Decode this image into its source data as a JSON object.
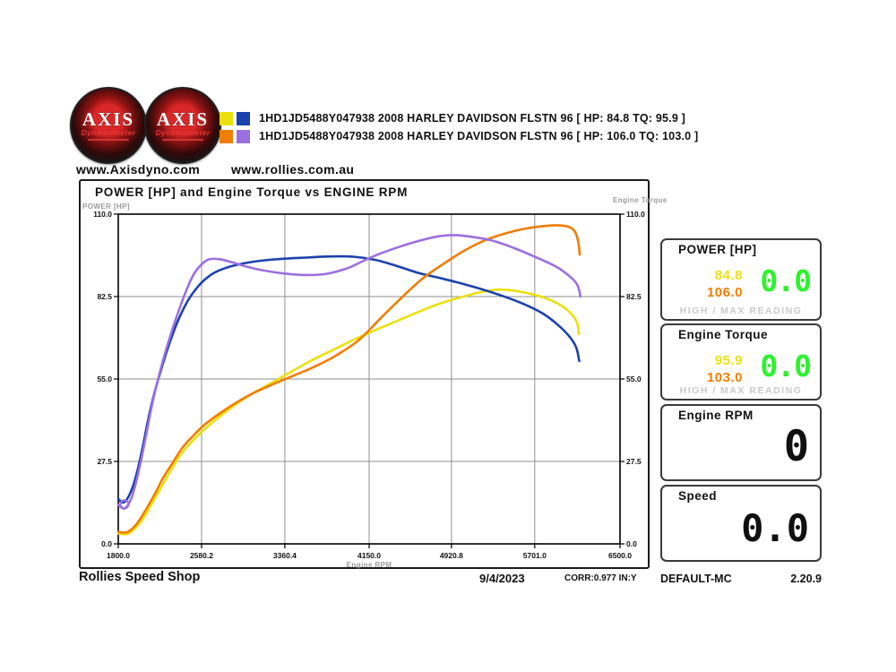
{
  "header": {
    "logo": {
      "brand": "AXIS",
      "sub": "Dynamometer"
    },
    "sites": {
      "left": "www.Axisdyno.com",
      "right": "www.rollies.com.au"
    },
    "legend": [
      {
        "label": "1HD1JD5488Y047938 2008 HARLEY DAVIDSON FLSTN 96 [ HP: 84.8 TQ: 95.9 ]"
      },
      {
        "label": "1HD1JD5488Y047938 2008 HARLEY DAVIDSON FLSTN 96 [ HP: 106.0 TQ: 103.0 ]"
      }
    ]
  },
  "chart_data": {
    "type": "line",
    "title": "POWER [HP] and Engine Torque vs ENGINE RPM",
    "xlabel": "Engine RPM",
    "ylabel_left": "POWER [HP]",
    "ylabel_right": "Engine Torque",
    "xlim": [
      1800,
      6500
    ],
    "ylim": [
      0,
      110
    ],
    "grid": true,
    "x_ticks": [
      {
        "rpm": 1800,
        "label": "1800.0"
      },
      {
        "rpm": 2580.2,
        "label": "2580.2"
      },
      {
        "rpm": 3360.4,
        "label": "3360.4"
      },
      {
        "rpm": 4150.0,
        "label": "4150.0"
      },
      {
        "rpm": 4920.8,
        "label": "4920.8"
      },
      {
        "rpm": 5701.0,
        "label": "5701.0"
      },
      {
        "rpm": 6500,
        "label": "6500.0"
      }
    ],
    "y_ticks": [
      {
        "v": 110,
        "label": "110.0"
      },
      {
        "v": 82.5,
        "label": "82.5"
      },
      {
        "v": 55,
        "label": "55.0"
      },
      {
        "v": 27.5,
        "label": "27.5"
      },
      {
        "v": 0,
        "label": "0.0"
      }
    ],
    "series": [
      {
        "name": "run1-power-hp",
        "color": "#ecdf0e",
        "max": 84.8,
        "points": [
          [
            1800,
            3.5
          ],
          [
            1850,
            3.2
          ],
          [
            1900,
            3.5
          ],
          [
            1980,
            6
          ],
          [
            2060,
            10
          ],
          [
            2140,
            15
          ],
          [
            2220,
            20
          ],
          [
            2300,
            25
          ],
          [
            2400,
            30.5
          ],
          [
            2500,
            34.5
          ],
          [
            2600,
            38
          ],
          [
            2750,
            42.5
          ],
          [
            2900,
            46.5
          ],
          [
            3050,
            50
          ],
          [
            3200,
            53
          ],
          [
            3400,
            57
          ],
          [
            3600,
            61
          ],
          [
            3800,
            64.5
          ],
          [
            4000,
            68
          ],
          [
            4200,
            71.2
          ],
          [
            4400,
            74.2
          ],
          [
            4600,
            77.2
          ],
          [
            4800,
            80
          ],
          [
            5000,
            82.2
          ],
          [
            5200,
            84
          ],
          [
            5350,
            84.8
          ],
          [
            5500,
            84.5
          ],
          [
            5650,
            83.5
          ],
          [
            5800,
            82
          ],
          [
            5950,
            79.5
          ],
          [
            6050,
            76.5
          ],
          [
            6100,
            73.5
          ],
          [
            6115,
            70
          ]
        ]
      },
      {
        "name": "run1-torque",
        "color": "#1b41ad",
        "max": 95.9,
        "points": [
          [
            1800,
            15
          ],
          [
            1840,
            13.8
          ],
          [
            1880,
            14.8
          ],
          [
            1930,
            18.5
          ],
          [
            1980,
            24.5
          ],
          [
            2030,
            32.5
          ],
          [
            2080,
            41.5
          ],
          [
            2140,
            50.5
          ],
          [
            2200,
            58
          ],
          [
            2280,
            67
          ],
          [
            2360,
            74.5
          ],
          [
            2450,
            81
          ],
          [
            2550,
            86
          ],
          [
            2650,
            89.3
          ],
          [
            2750,
            91.3
          ],
          [
            2900,
            93
          ],
          [
            3100,
            94.3
          ],
          [
            3300,
            95
          ],
          [
            3550,
            95.5
          ],
          [
            3800,
            95.9
          ],
          [
            4000,
            95.8
          ],
          [
            4200,
            94.8
          ],
          [
            4400,
            92.8
          ],
          [
            4600,
            90.5
          ],
          [
            4800,
            88.8
          ],
          [
            5000,
            87
          ],
          [
            5200,
            85
          ],
          [
            5400,
            82.7
          ],
          [
            5600,
            80
          ],
          [
            5780,
            76.8
          ],
          [
            5920,
            73
          ],
          [
            6030,
            69
          ],
          [
            6090,
            65.5
          ],
          [
            6118,
            61
          ]
        ]
      },
      {
        "name": "run2-power-hp",
        "color": "#ef7d00",
        "max": 106.0,
        "points": [
          [
            1800,
            4
          ],
          [
            1850,
            3.8
          ],
          [
            1900,
            4.2
          ],
          [
            1980,
            7
          ],
          [
            2060,
            11.5
          ],
          [
            2140,
            16.5
          ],
          [
            2220,
            22
          ],
          [
            2300,
            26.5
          ],
          [
            2400,
            32
          ],
          [
            2500,
            36
          ],
          [
            2600,
            39.5
          ],
          [
            2750,
            43.5
          ],
          [
            2900,
            47
          ],
          [
            3050,
            50
          ],
          [
            3200,
            52.5
          ],
          [
            3400,
            55.5
          ],
          [
            3600,
            58.5
          ],
          [
            3800,
            62
          ],
          [
            4000,
            66.5
          ],
          [
            4100,
            69.5
          ],
          [
            4250,
            75
          ],
          [
            4450,
            82
          ],
          [
            4650,
            88.5
          ],
          [
            4850,
            93.5
          ],
          [
            5050,
            98
          ],
          [
            5250,
            101.5
          ],
          [
            5450,
            103.8
          ],
          [
            5650,
            105.4
          ],
          [
            5850,
            106.2
          ],
          [
            5950,
            106.2
          ],
          [
            6030,
            105.6
          ],
          [
            6080,
            104
          ],
          [
            6110,
            100.5
          ],
          [
            6122,
            96.5
          ]
        ]
      },
      {
        "name": "run2-torque",
        "color": "#9b6fe0",
        "max": 103.0,
        "points": [
          [
            1800,
            13
          ],
          [
            1860,
            11.8
          ],
          [
            1920,
            15
          ],
          [
            1970,
            21
          ],
          [
            2020,
            29
          ],
          [
            2070,
            38
          ],
          [
            2120,
            47
          ],
          [
            2180,
            56
          ],
          [
            2250,
            65
          ],
          [
            2330,
            74
          ],
          [
            2420,
            83
          ],
          [
            2500,
            89.5
          ],
          [
            2560,
            92.5
          ],
          [
            2640,
            94.8
          ],
          [
            2740,
            95
          ],
          [
            2860,
            94
          ],
          [
            3000,
            92.5
          ],
          [
            3150,
            91.3
          ],
          [
            3350,
            90.2
          ],
          [
            3550,
            89.7
          ],
          [
            3750,
            90.1
          ],
          [
            3950,
            92
          ],
          [
            4100,
            94.5
          ],
          [
            4250,
            96.8
          ],
          [
            4450,
            99.3
          ],
          [
            4650,
            101.4
          ],
          [
            4800,
            102.6
          ],
          [
            4930,
            103
          ],
          [
            5080,
            102.6
          ],
          [
            5300,
            101.2
          ],
          [
            5500,
            98.8
          ],
          [
            5700,
            95.8
          ],
          [
            5900,
            92.5
          ],
          [
            6020,
            89.5
          ],
          [
            6090,
            87
          ],
          [
            6118,
            84.5
          ],
          [
            6128,
            82.5
          ]
        ]
      }
    ],
    "start_marker": {
      "rpm": 1858,
      "value": 13.2,
      "color": "#9b6fe0"
    }
  },
  "gauges": {
    "power": {
      "title": "POWER [HP]",
      "run1": "84.8",
      "run2": "106.0",
      "live": "0.0",
      "footer": "HIGH / MAX READING"
    },
    "torque": {
      "title": "Engine Torque",
      "run1": "95.9",
      "run2": "103.0",
      "live": "0.0",
      "footer": "HIGH / MAX READING"
    },
    "rpm": {
      "title": "Engine RPM",
      "live": "0"
    },
    "speed": {
      "title": "Speed",
      "live": "0.0"
    }
  },
  "statusbar": {
    "shop": "Rollies Speed Shop",
    "date": "9/4/2023",
    "corr": "CORR:0.977 IN:Y",
    "config": "DEFAULT-MC",
    "version": "2.20.9"
  },
  "colors": {
    "run1_power": "#ecdf0e",
    "run1_torque": "#1b41ad",
    "run2_power": "#ef7d00",
    "run2_torque": "#9b6fe0",
    "live_green": "#2df22d",
    "muted_grey": "#c9c9c9",
    "axis_grey": "#9a9a9a",
    "grid": "#8f8f8f"
  }
}
